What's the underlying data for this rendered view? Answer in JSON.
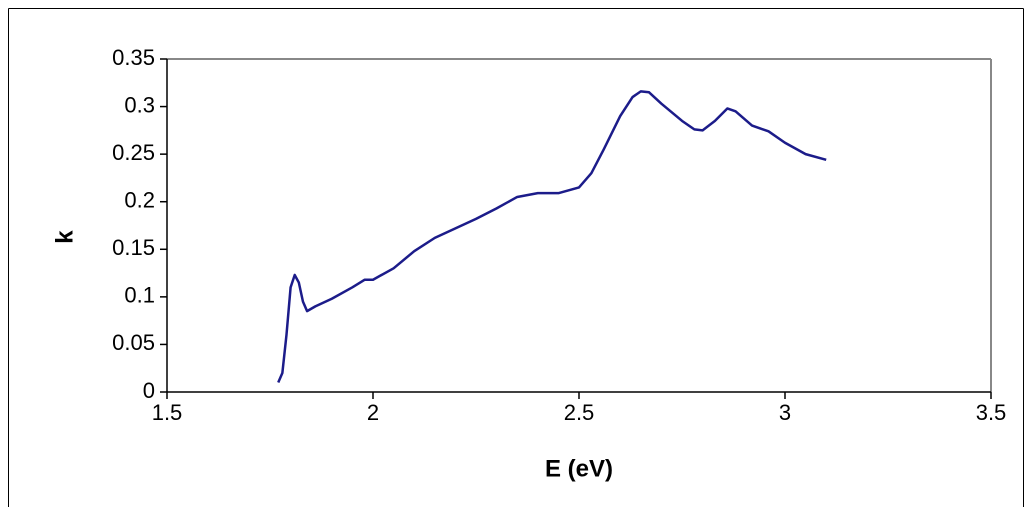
{
  "chart_data": {
    "type": "line",
    "x_label": "E (eV)",
    "y_label": "k",
    "color": "#1c1c8a",
    "x": [
      1.77,
      1.78,
      1.79,
      1.8,
      1.81,
      1.82,
      1.83,
      1.84,
      1.86,
      1.9,
      1.95,
      1.98,
      2.0,
      2.05,
      2.1,
      2.15,
      2.2,
      2.25,
      2.3,
      2.35,
      2.4,
      2.45,
      2.5,
      2.53,
      2.56,
      2.6,
      2.63,
      2.65,
      2.67,
      2.7,
      2.75,
      2.78,
      2.8,
      2.83,
      2.86,
      2.88,
      2.92,
      2.96,
      3.0,
      3.05,
      3.1
    ],
    "values": [
      0.01,
      0.02,
      0.06,
      0.11,
      0.123,
      0.115,
      0.095,
      0.085,
      0.09,
      0.098,
      0.11,
      0.118,
      0.118,
      0.13,
      0.148,
      0.162,
      0.172,
      0.182,
      0.193,
      0.205,
      0.209,
      0.209,
      0.215,
      0.23,
      0.255,
      0.29,
      0.31,
      0.316,
      0.315,
      0.303,
      0.285,
      0.276,
      0.275,
      0.285,
      0.298,
      0.295,
      0.28,
      0.274,
      0.262,
      0.25,
      0.244
    ],
    "xlim": [
      1.5,
      3.5
    ],
    "xticks": [
      1.5,
      2,
      2.5,
      3,
      3.5
    ],
    "ylim": [
      0,
      0.35
    ],
    "yticks": [
      0,
      0.05,
      0.1,
      0.15,
      0.2,
      0.25,
      0.3,
      0.35
    ]
  }
}
